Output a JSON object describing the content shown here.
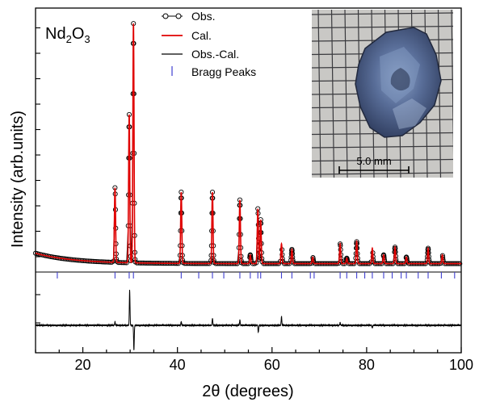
{
  "chart_data": {
    "type": "line",
    "sample_label": "Nd2O3",
    "sample_formula": {
      "base": "Nd",
      "sub1": "2",
      "mid": "O",
      "sub2": "3"
    },
    "xlabel": "2θ (degrees)",
    "ylabel": "Intensity (arb.units)",
    "xlim": [
      10,
      100
    ],
    "xticks": [
      20,
      40,
      60,
      80,
      100
    ],
    "xtick_labels": [
      "20",
      "40",
      "60",
      "80",
      "100"
    ],
    "legend": {
      "placement": "top-center",
      "entries": [
        {
          "label": "Obs.",
          "style": "circle-line",
          "color": "#000000"
        },
        {
          "label": "Cal.",
          "style": "line",
          "color": "#e00000"
        },
        {
          "label": "Obs.-Cal.",
          "style": "line",
          "color": "#000000"
        },
        {
          "label": "Bragg Peaks",
          "style": "tick",
          "color": "#4040d0"
        }
      ]
    },
    "background": {
      "start": 12,
      "end": 2.5,
      "decay": 8
    },
    "peaks": [
      {
        "x": 26.8,
        "h": 68
      },
      {
        "x": 29.8,
        "h": 135
      },
      {
        "x": 30.7,
        "h": 218
      },
      {
        "x": 40.8,
        "h": 65
      },
      {
        "x": 47.4,
        "h": 65
      },
      {
        "x": 53.2,
        "h": 58
      },
      {
        "x": 55.4,
        "h": 8
      },
      {
        "x": 57.0,
        "h": 50
      },
      {
        "x": 57.6,
        "h": 40
      },
      {
        "x": 62.0,
        "h": 18
      },
      {
        "x": 64.2,
        "h": 13
      },
      {
        "x": 68.6,
        "h": 6
      },
      {
        "x": 74.4,
        "h": 18
      },
      {
        "x": 75.8,
        "h": 5
      },
      {
        "x": 77.9,
        "h": 20
      },
      {
        "x": 81.2,
        "h": 14
      },
      {
        "x": 83.6,
        "h": 8
      },
      {
        "x": 86.0,
        "h": 15
      },
      {
        "x": 88.4,
        "h": 6
      },
      {
        "x": 93.0,
        "h": 14
      },
      {
        "x": 96.0,
        "h": 8
      }
    ],
    "bragg_peaks": [
      14.6,
      26.8,
      29.8,
      30.7,
      40.8,
      44.5,
      47.4,
      49.8,
      53.2,
      55.4,
      57.0,
      57.6,
      62.0,
      64.2,
      68.1,
      68.9,
      74.4,
      75.8,
      77.9,
      79.6,
      81.2,
      83.6,
      85.4,
      87.3,
      88.4,
      90.9,
      93.0,
      95.8,
      98.6
    ],
    "difference_spikes": [
      {
        "x": 26.8,
        "d": 2
      },
      {
        "x": 29.9,
        "d": 20
      },
      {
        "x": 30.8,
        "d": -14
      },
      {
        "x": 40.8,
        "d": 2
      },
      {
        "x": 47.4,
        "d": 4
      },
      {
        "x": 53.2,
        "d": 3
      },
      {
        "x": 57.1,
        "d": -4
      },
      {
        "x": 62.0,
        "d": 5
      },
      {
        "x": 74.4,
        "d": 1.5
      },
      {
        "x": 81.2,
        "d": -1.5
      }
    ],
    "inset": {
      "description_kind": "photo",
      "scale_bar_label": "5.0 mm"
    }
  }
}
